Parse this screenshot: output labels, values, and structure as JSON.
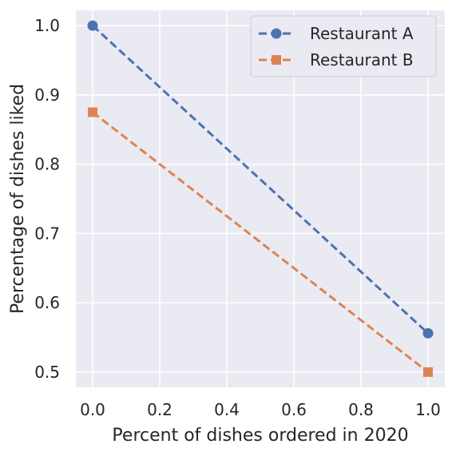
{
  "chart_data": {
    "type": "line",
    "xlabel": "Percent of dishes ordered in 2020",
    "ylabel": "Percentage of dishes liked",
    "xlim": [
      -0.05,
      1.05
    ],
    "ylim": [
      0.478,
      1.022
    ],
    "xticks": [
      0.0,
      0.2,
      0.4,
      0.6,
      0.8,
      1.0
    ],
    "xtick_labels": [
      "0.0",
      "0.2",
      "0.4",
      "0.6",
      "0.8",
      "1.0"
    ],
    "yticks": [
      0.5,
      0.6,
      0.7,
      0.8,
      0.9,
      1.0
    ],
    "ytick_labels": [
      "0.5",
      "0.6",
      "0.7",
      "0.8",
      "0.9",
      "1.0"
    ],
    "grid": true,
    "legend_position": "top-right",
    "series": [
      {
        "name": "Restaurant A",
        "x": [
          0.0,
          1.0
        ],
        "y": [
          1.0,
          0.556
        ],
        "color": "#4c72b0",
        "marker": "circle",
        "linestyle": "dashed"
      },
      {
        "name": "Restaurant B",
        "x": [
          0.0,
          1.0
        ],
        "y": [
          0.875,
          0.5
        ],
        "color": "#dd8452",
        "marker": "square",
        "linestyle": "dashed"
      }
    ],
    "colors": {
      "plot_background": "#eaeaf2",
      "grid": "#ffffff",
      "page_background": "#ffffff"
    }
  }
}
